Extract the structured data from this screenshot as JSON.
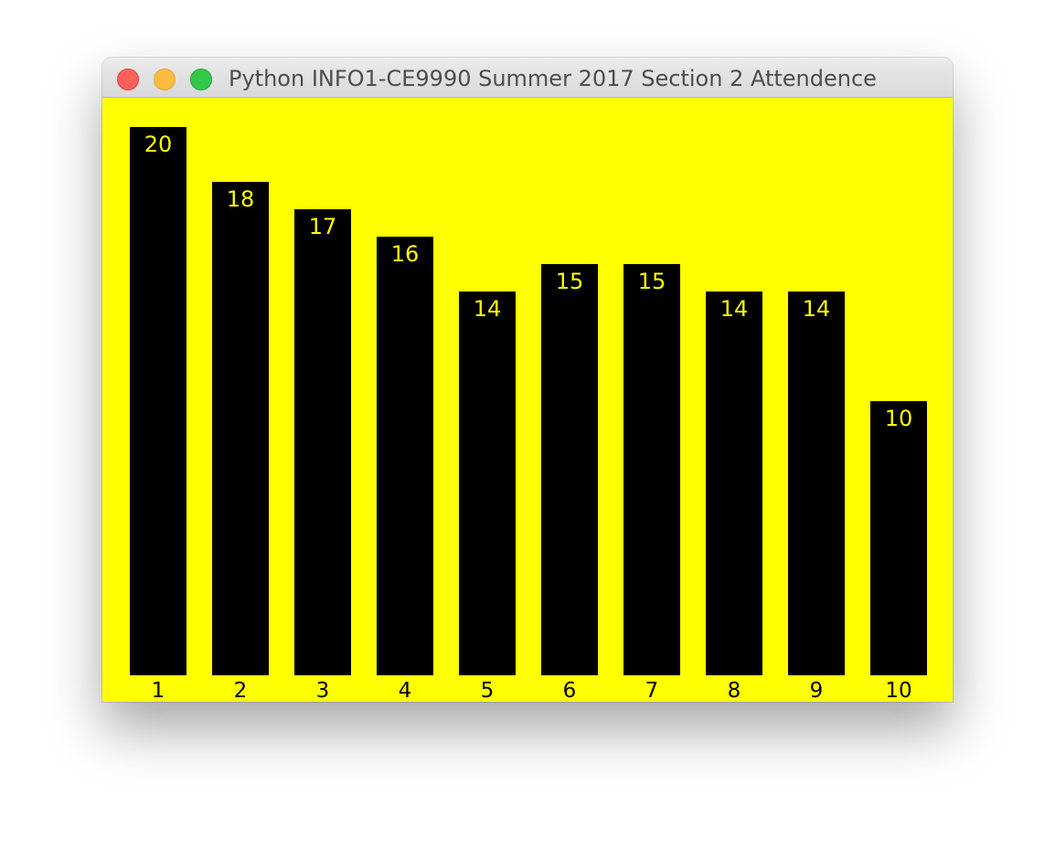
{
  "window": {
    "title": "Python INFO1-CE9990 Summer 2017 Section 2 Attendence"
  },
  "colors": {
    "background": "#ffff00",
    "bar": "#000000",
    "bar_label": "#ffff00",
    "tick_label": "#000000"
  },
  "chart_data": {
    "type": "bar",
    "categories": [
      "1",
      "2",
      "3",
      "4",
      "5",
      "6",
      "7",
      "8",
      "9",
      "10"
    ],
    "values": [
      20,
      18,
      17,
      16,
      14,
      15,
      15,
      14,
      14,
      10
    ],
    "title": "Python INFO1-CE9990 Summer 2017 Section 2 Attendence",
    "xlabel": "",
    "ylabel": "",
    "ylim": [
      0,
      20
    ],
    "grid": false,
    "legend": "none"
  }
}
